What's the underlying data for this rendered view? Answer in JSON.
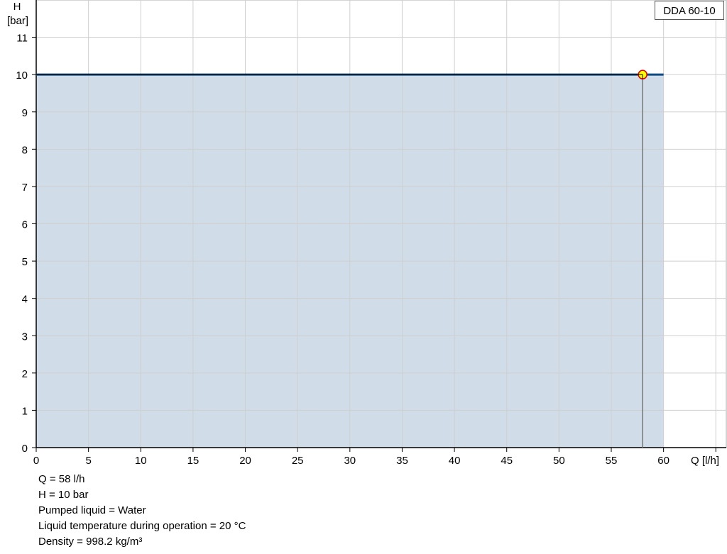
{
  "chart_data": {
    "type": "line",
    "title": "",
    "xlabel": "Q [l/h]",
    "ylabel_line1": "H",
    "ylabel_line2": "[bar]",
    "xlim": [
      0,
      66
    ],
    "ylim": [
      0,
      12
    ],
    "x_ticks": [
      0,
      5,
      10,
      15,
      20,
      25,
      30,
      35,
      40,
      45,
      50,
      55,
      60,
      65
    ],
    "x_tick_labels": [
      "0",
      "5",
      "10",
      "15",
      "20",
      "25",
      "30",
      "35",
      "40",
      "45",
      "50",
      "55",
      "60",
      ""
    ],
    "y_ticks": [
      0,
      1,
      2,
      3,
      4,
      5,
      6,
      7,
      8,
      9,
      10,
      11
    ],
    "y_tick_labels": [
      "0",
      "1",
      "2",
      "3",
      "4",
      "5",
      "6",
      "7",
      "8",
      "9",
      "10",
      "11"
    ],
    "grid": true,
    "legend_position": "top-right",
    "series": [
      {
        "name": "DDA 60-10",
        "x": [
          0,
          60
        ],
        "y": [
          10,
          10
        ],
        "color": "#0b4a83",
        "area_fill": "#d0dce8"
      }
    ],
    "operating_point": {
      "x": 58,
      "y": 10,
      "fill": "#ffff00",
      "stroke": "#e00000"
    }
  },
  "info": [
    "Q = 58 l/h",
    "H = 10 bar",
    "Pumped liquid = Water",
    "Liquid temperature during operation = 20 °C",
    "Density = 998.2 kg/m³"
  ]
}
